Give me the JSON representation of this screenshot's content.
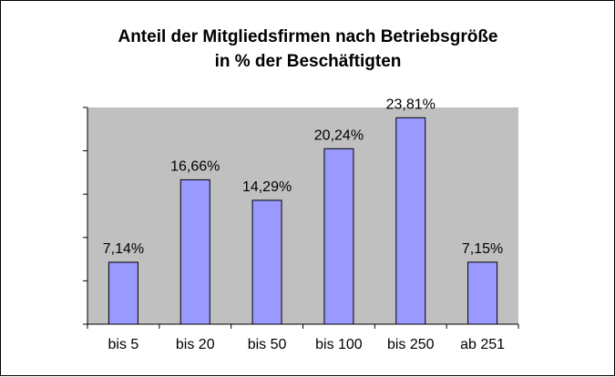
{
  "chart_data": {
    "type": "bar",
    "title_lines": [
      "Anteil der Mitgliedsfirmen nach Betriebsgröße",
      "in % der Beschäftigten"
    ],
    "categories": [
      "bis 5",
      "bis 20",
      "bis 50",
      "bis 100",
      "bis 250",
      "ab 251"
    ],
    "values": [
      7.14,
      16.66,
      14.29,
      20.24,
      23.81,
      7.15
    ],
    "data_labels": [
      "7,14%",
      "16,66%",
      "14,29%",
      "20,24%",
      "23,81%",
      "7,15%"
    ],
    "ylim": [
      0,
      25
    ],
    "grid": false,
    "legend": "none",
    "colors": {
      "bar_fill": "#9999ff",
      "bar_stroke": "#000000",
      "plot_background": "#c0c0c0"
    }
  }
}
